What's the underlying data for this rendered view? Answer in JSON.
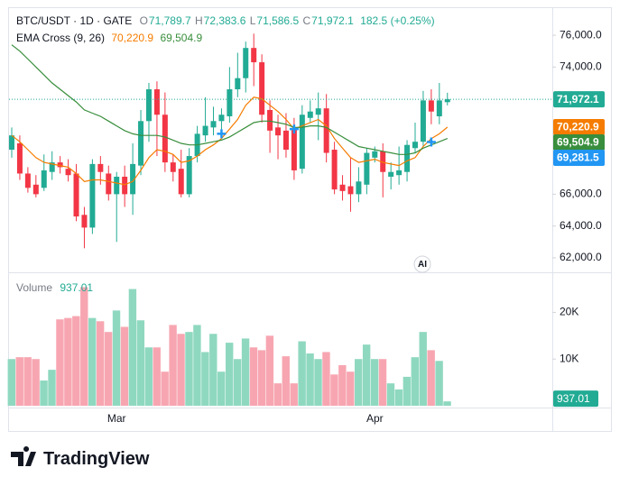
{
  "chart_data": [
    {
      "type": "candlestick",
      "title": "BTC/USDT · 1D · GATE",
      "ohlc": [
        {
          "key": "O",
          "label": "71,789.7"
        },
        {
          "key": "H",
          "label": "72,383.6"
        },
        {
          "key": "L",
          "label": "71,586.5"
        },
        {
          "key": "C",
          "label": "71,972.1"
        }
      ],
      "change": "182.5 (+0.25%)",
      "indicator": "EMA Cross (9, 26)",
      "open": [
        68800,
        69200,
        67300,
        66600,
        66400,
        67400,
        68000,
        67600,
        67300,
        64700,
        63900,
        67900,
        67300,
        66000,
        67100,
        66000,
        67800,
        70600,
        72600,
        71000,
        68000,
        67600,
        66000,
        68400,
        69700,
        70200,
        70600,
        70900,
        72600,
        73300,
        75200,
        74300,
        71300,
        70200,
        70000,
        70100,
        67600,
        70800,
        71000,
        71400,
        68800,
        66600,
        66500,
        66000,
        66600,
        68300,
        68700,
        67100,
        67200,
        67400,
        68900,
        69300,
        71900,
        70900,
        71789.7
      ],
      "high": [
        70200,
        69700,
        67700,
        67200,
        68500,
        68700,
        68400,
        68200,
        67900,
        65200,
        68200,
        68400,
        67800,
        67400,
        67800,
        69200,
        71300,
        73000,
        73100,
        72400,
        68500,
        68800,
        68900,
        70300,
        72100,
        71500,
        71400,
        74000,
        74900,
        75600,
        76100,
        74800,
        71900,
        71000,
        71100,
        70800,
        71600,
        71900,
        72400,
        72300,
        69300,
        67200,
        68300,
        67700,
        68900,
        69000,
        69200,
        68000,
        69000,
        69400,
        70500,
        72500,
        72600,
        73000,
        72383.6
      ],
      "low": [
        68300,
        66900,
        66100,
        65800,
        66200,
        66900,
        67300,
        66800,
        64300,
        62600,
        63500,
        66600,
        65600,
        63000,
        65200,
        64700,
        67200,
        69300,
        68400,
        67400,
        66800,
        65800,
        65800,
        68000,
        69300,
        69700,
        69900,
        70500,
        72100,
        72400,
        72800,
        70500,
        68600,
        68200,
        68300,
        66900,
        67300,
        70500,
        69400,
        68000,
        66000,
        65600,
        64900,
        65500,
        66000,
        68000,
        65800,
        66300,
        66600,
        66800,
        68600,
        69000,
        70400,
        70400,
        71586.5
      ],
      "close": [
        69700,
        67300,
        66400,
        66000,
        67500,
        68000,
        67700,
        67200,
        64600,
        63900,
        67900,
        67400,
        66000,
        67100,
        66000,
        67900,
        70600,
        72600,
        71000,
        68000,
        67400,
        66000,
        68400,
        69800,
        70300,
        70600,
        71000,
        72600,
        73300,
        75200,
        74300,
        71000,
        70000,
        69700,
        68800,
        67500,
        71000,
        71200,
        71400,
        68600,
        66300,
        66200,
        66000,
        66800,
        68600,
        68700,
        67400,
        67400,
        67500,
        69100,
        69300,
        71900,
        71200,
        71900,
        71972.1
      ],
      "up_color": "#22ab94",
      "down_color": "#f23645",
      "series": [
        {
          "color": "#f57c00",
          "last_label": "70,220.9",
          "values": [
            69700,
            69300,
            68800,
            68300,
            68000,
            67900,
            67800,
            67700,
            67300,
            66800,
            66900,
            66900,
            66800,
            66700,
            66600,
            66800,
            67500,
            68300,
            68800,
            68700,
            68500,
            68000,
            68100,
            68400,
            68800,
            69100,
            69500,
            70100,
            70700,
            71600,
            72100,
            72000,
            71600,
            71200,
            70700,
            70100,
            70300,
            70500,
            70700,
            70300,
            69500,
            68900,
            68300,
            68000,
            68100,
            68200,
            68000,
            67900,
            67800,
            68100,
            68300,
            69000,
            69500,
            69800,
            70220.9
          ]
        },
        {
          "color": "#388e3c",
          "last_label": "69,504.9",
          "values": [
            75400,
            75000,
            74500,
            74000,
            73500,
            73000,
            72600,
            72200,
            71800,
            71300,
            71100,
            70900,
            70600,
            70300,
            70000,
            69800,
            69700,
            69700,
            69700,
            69600,
            69400,
            69200,
            69100,
            69100,
            69200,
            69300,
            69400,
            69600,
            69900,
            70200,
            70500,
            70600,
            70600,
            70500,
            70400,
            70200,
            70200,
            70300,
            70300,
            70200,
            69900,
            69600,
            69300,
            69000,
            68900,
            68800,
            68700,
            68600,
            68500,
            68500,
            68600,
            68900,
            69100,
            69300,
            69504.9
          ]
        }
      ],
      "cross_markers": {
        "color": "#2196f3",
        "indices": [
          26,
          35,
          52
        ],
        "values": [
          69800,
          70100,
          69281.5
        ],
        "last_label": "69,281.5"
      },
      "ylim": [
        61200,
        77650
      ],
      "yticks": [
        {
          "value": 76000,
          "label": "76,000.0"
        },
        {
          "value": 74000,
          "label": "74,000.0"
        },
        {
          "value": 66000,
          "label": "66,000.0"
        },
        {
          "value": 64000,
          "label": "64,000.0"
        },
        {
          "value": 62000,
          "label": "62,000.0"
        }
      ]
    },
    {
      "type": "bar",
      "title": "Volume",
      "last_label": "937.01",
      "categories": [
        null,
        null,
        null,
        null,
        null,
        null,
        null,
        null,
        null,
        null,
        null,
        null,
        null,
        "Mar",
        null,
        null,
        null,
        null,
        null,
        null,
        null,
        null,
        null,
        null,
        null,
        null,
        null,
        null,
        null,
        null,
        null,
        null,
        null,
        null,
        null,
        null,
        null,
        null,
        null,
        null,
        null,
        null,
        null,
        null,
        null,
        "Apr",
        null,
        null,
        null,
        null,
        null,
        null,
        null,
        null,
        null
      ],
      "values": [
        10000,
        10400,
        10400,
        10000,
        5400,
        7700,
        18500,
        18800,
        19200,
        25400,
        18800,
        18100,
        15800,
        20400,
        16900,
        25000,
        18300,
        12500,
        12500,
        7300,
        17300,
        15400,
        15800,
        17300,
        11500,
        15400,
        7300,
        13500,
        10000,
        14400,
        12500,
        11900,
        15000,
        4800,
        10600,
        4800,
        13800,
        11200,
        10000,
        11500,
        6700,
        8700,
        7300,
        10000,
        13100,
        10000,
        10000,
        4800,
        3500,
        6200,
        10400,
        15800,
        11900,
        9600,
        937.01
      ],
      "up_color": "#8fd8c0",
      "down_color": "#f7a6b1",
      "ylim": [
        0,
        28000
      ],
      "yticks": [
        {
          "value": 20000,
          "label": "20K"
        },
        {
          "value": 10000,
          "label": "10K"
        }
      ]
    }
  ],
  "branding": {
    "logo": "TradingView",
    "badge": "AI"
  }
}
